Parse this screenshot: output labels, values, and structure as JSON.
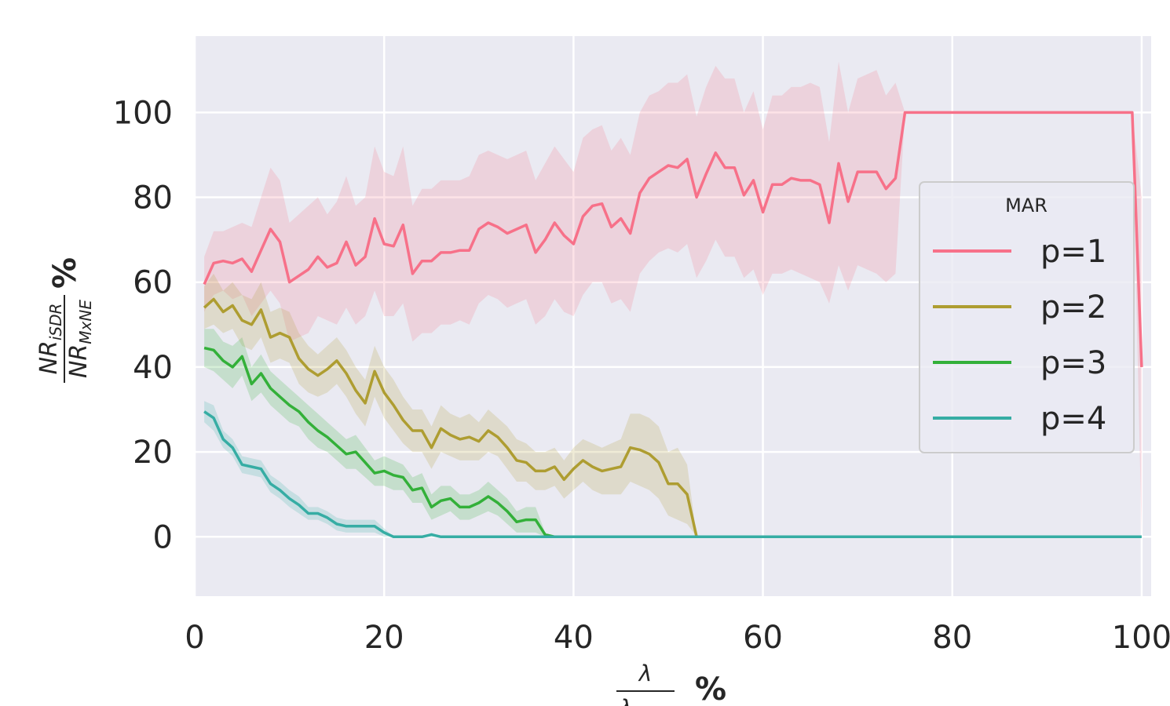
{
  "chart_data": {
    "type": "line",
    "xlabel_parts": {
      "numerator": "λ",
      "denominator": "λ",
      "unit": "%"
    },
    "ylabel_parts": {
      "numerator": "NR",
      "numerator_sub": "iSDR",
      "denominator": "NR",
      "denominator_sub": "MxNE",
      "unit": "%"
    },
    "xlim": [
      0,
      101
    ],
    "ylim": [
      -14,
      118
    ],
    "x_ticks": [
      0,
      20,
      40,
      60,
      80,
      100
    ],
    "x_tick_labels": [
      "0",
      "20",
      "40",
      "60",
      "80",
      "100"
    ],
    "y_ticks": [
      0,
      20,
      40,
      60,
      80,
      100
    ],
    "y_tick_labels": [
      "0",
      "20",
      "40",
      "60",
      "80",
      "100"
    ],
    "grid": true,
    "background": "#eaeaf2",
    "legend": {
      "title": "MAR",
      "placement": "center-right"
    },
    "series": [
      {
        "name": "p=1",
        "color": "#f77189",
        "x": [
          1,
          2,
          3,
          4,
          5,
          6,
          7,
          8,
          9,
          10,
          11,
          12,
          13,
          14,
          15,
          16,
          17,
          18,
          19,
          20,
          21,
          22,
          23,
          24,
          25,
          26,
          27,
          28,
          29,
          30,
          31,
          32,
          33,
          34,
          35,
          36,
          37,
          38,
          39,
          40,
          41,
          42,
          43,
          44,
          45,
          46,
          47,
          48,
          49,
          50,
          51,
          52,
          53,
          54,
          55,
          56,
          57,
          58,
          59,
          60,
          61,
          62,
          63,
          64,
          65,
          66,
          67,
          68,
          69,
          70,
          71,
          72,
          73,
          74,
          75,
          99,
          100
        ],
        "y": [
          59.5,
          64.5,
          65,
          64.5,
          65.5,
          62.5,
          67.5,
          72.5,
          69.5,
          60,
          61.5,
          63,
          66,
          63.5,
          64.5,
          69.5,
          64,
          66,
          75,
          69,
          68.5,
          73.5,
          62,
          65,
          65,
          67,
          67,
          67.5,
          67.5,
          72.5,
          74,
          73,
          71.5,
          72.5,
          73.5,
          67,
          70,
          74,
          71,
          69,
          75.5,
          78,
          78.5,
          73,
          75,
          71.5,
          81,
          84.5,
          86,
          87.5,
          87,
          89,
          80,
          85.5,
          90.5,
          87,
          87,
          80.5,
          84,
          76.5,
          83,
          83,
          84.5,
          84,
          84,
          83,
          74,
          88,
          79,
          86,
          86,
          86,
          82,
          84.5,
          100,
          100,
          40
        ],
        "lower": [
          53,
          57,
          58,
          56,
          57,
          52,
          55,
          58,
          55,
          46,
          47,
          48,
          52,
          51,
          50,
          54,
          50,
          52,
          58,
          52,
          52,
          55,
          46,
          48,
          48,
          50,
          50,
          51,
          50,
          55,
          57,
          56,
          54,
          55,
          56,
          50,
          52,
          56,
          53,
          52,
          57,
          60,
          60,
          55,
          56,
          53,
          62,
          65,
          67,
          68,
          67,
          69,
          61,
          65,
          70,
          66,
          66,
          61,
          63,
          57,
          62,
          62,
          63,
          62,
          61,
          60,
          55,
          64,
          58,
          64,
          63,
          62,
          60,
          62,
          100,
          100,
          0
        ],
        "upper": [
          66,
          72,
          72,
          73,
          74,
          73,
          80,
          87,
          84,
          74,
          76,
          78,
          80,
          76,
          79,
          85,
          78,
          80,
          92,
          86,
          85,
          92,
          78,
          82,
          82,
          84,
          84,
          84,
          85,
          90,
          91,
          90,
          89,
          90,
          91,
          84,
          88,
          92,
          89,
          86,
          94,
          96,
          97,
          91,
          94,
          90,
          100,
          104,
          105,
          107,
          107,
          109,
          99,
          106,
          111,
          108,
          108,
          100,
          105,
          96,
          104,
          104,
          106,
          106,
          107,
          106,
          93,
          112,
          100,
          108,
          109,
          110,
          104,
          107,
          100,
          100,
          80
        ]
      },
      {
        "name": "p=2",
        "color": "#ae9d31",
        "x": [
          1,
          2,
          3,
          4,
          5,
          6,
          7,
          8,
          9,
          10,
          11,
          12,
          13,
          14,
          15,
          16,
          17,
          18,
          19,
          20,
          21,
          22,
          23,
          24,
          25,
          26,
          27,
          28,
          29,
          30,
          31,
          32,
          33,
          34,
          35,
          36,
          37,
          38,
          39,
          40,
          41,
          42,
          43,
          44,
          45,
          46,
          47,
          48,
          49,
          50,
          51,
          52,
          53
        ],
        "y": [
          54,
          56,
          53,
          54.5,
          51,
          50,
          53.5,
          47,
          48,
          47,
          42,
          39.5,
          38,
          39.5,
          41.5,
          38.5,
          34.5,
          31.5,
          39,
          34,
          31,
          27.5,
          25,
          25,
          21,
          25.5,
          24,
          23,
          23.5,
          22.5,
          25,
          23.5,
          21,
          18,
          17.5,
          15.5,
          15.5,
          16.5,
          13.5,
          16,
          18,
          16.5,
          15.5,
          16,
          16.5,
          21,
          20.5,
          19.5,
          17.5,
          12.5,
          12.5,
          10,
          0
        ],
        "lower": [
          49,
          50,
          48,
          49,
          45,
          44,
          47,
          41,
          42,
          41,
          36,
          34,
          33,
          34,
          36,
          33,
          29,
          26,
          33,
          28,
          25,
          22,
          20,
          20,
          16,
          20,
          19,
          18,
          18,
          18,
          20,
          19,
          16,
          13,
          13,
          11,
          11,
          12,
          9,
          11,
          13,
          11,
          10,
          10,
          10,
          13,
          12,
          11,
          9,
          5,
          4,
          3,
          0
        ],
        "upper": [
          59,
          62,
          58,
          60,
          57,
          56,
          60,
          53,
          54,
          53,
          48,
          45,
          43,
          45,
          47,
          44,
          40,
          37,
          45,
          40,
          37,
          33,
          30,
          30,
          26,
          31,
          29,
          28,
          29,
          27,
          30,
          28,
          26,
          23,
          22,
          20,
          20,
          21,
          18,
          21,
          23,
          22,
          21,
          22,
          23,
          29,
          29,
          28,
          26,
          20,
          21,
          17,
          0
        ]
      },
      {
        "name": "p=3",
        "color": "#33b039",
        "x": [
          1,
          2,
          3,
          4,
          5,
          6,
          7,
          8,
          9,
          10,
          11,
          12,
          13,
          14,
          15,
          16,
          17,
          18,
          19,
          20,
          21,
          22,
          23,
          24,
          25,
          26,
          27,
          28,
          29,
          30,
          31,
          32,
          33,
          34,
          35,
          36,
          37,
          38
        ],
        "y": [
          44.5,
          44,
          41.5,
          40,
          42.5,
          36,
          38.5,
          35,
          33,
          31,
          29.5,
          27,
          25,
          23.5,
          21.5,
          19.5,
          20,
          17.5,
          15,
          15.5,
          14.5,
          14,
          11,
          11.5,
          7,
          8.5,
          9,
          7,
          7,
          8,
          9.5,
          8,
          6,
          3.5,
          4,
          4,
          0.5,
          0
        ],
        "lower": [
          40,
          39,
          37,
          35,
          38,
          32,
          34,
          31,
          29,
          27,
          26,
          23,
          21,
          20,
          18,
          16,
          16,
          14,
          12,
          12,
          11,
          11,
          8,
          8,
          4,
          5,
          6,
          4,
          4,
          5,
          6,
          5,
          3,
          1,
          1,
          1,
          0,
          0
        ],
        "upper": [
          49,
          49,
          46,
          45,
          47,
          40,
          43,
          39,
          37,
          35,
          33,
          31,
          29,
          27,
          25,
          23,
          24,
          21,
          18,
          19,
          18,
          17,
          14,
          15,
          10,
          12,
          12,
          10,
          10,
          11,
          13,
          11,
          9,
          6,
          7,
          7,
          1,
          0
        ]
      },
      {
        "name": "p=4",
        "color": "#36ada4",
        "x": [
          1,
          2,
          3,
          4,
          5,
          6,
          7,
          8,
          9,
          10,
          11,
          12,
          13,
          14,
          15,
          16,
          17,
          18,
          19,
          20,
          21,
          22,
          23,
          24,
          25,
          26,
          27,
          100
        ],
        "y": [
          29.5,
          28,
          23,
          21,
          17,
          16.5,
          16,
          12.5,
          11,
          9,
          7.5,
          5.5,
          5.5,
          4.5,
          3,
          2.5,
          2.5,
          2.5,
          2.5,
          1,
          0,
          0,
          0,
          0,
          0.5,
          0,
          0,
          0
        ],
        "lower": [
          27,
          25,
          21,
          19,
          15,
          14.5,
          14,
          10.5,
          9,
          7,
          5.5,
          4,
          4,
          3,
          1.5,
          1,
          1,
          1,
          1,
          0,
          0,
          0,
          0,
          0,
          0,
          0,
          0,
          0
        ],
        "upper": [
          32,
          31,
          25,
          23,
          19,
          18.5,
          18,
          14.5,
          13,
          11,
          9.5,
          7,
          7,
          6,
          4.5,
          4,
          4,
          4,
          4,
          2,
          0,
          0,
          0,
          0,
          1,
          0,
          0,
          0
        ]
      }
    ]
  }
}
